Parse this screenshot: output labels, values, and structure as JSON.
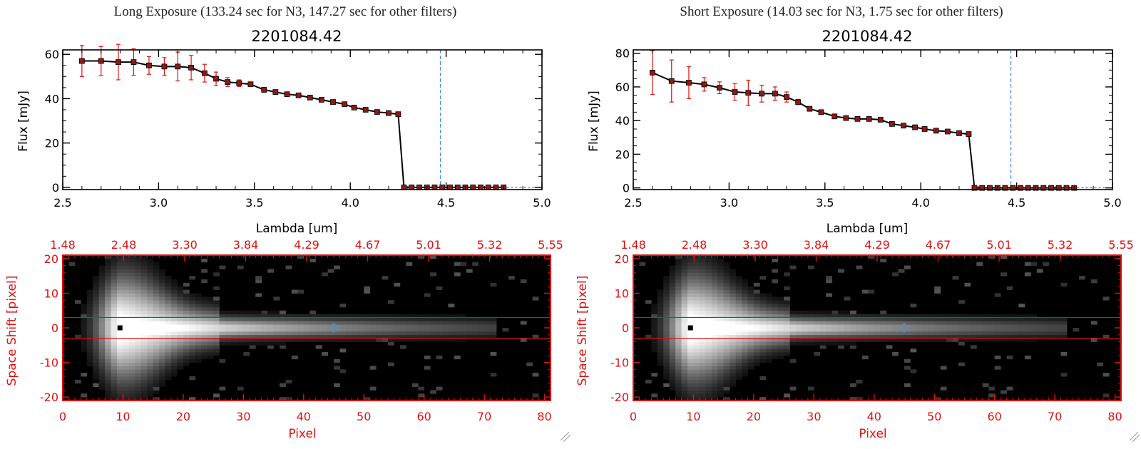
{
  "panels": [
    {
      "caption": "Long Exposure (133.24 sec for N3, 147.27 sec for other filters)",
      "title": "2201084.42"
    },
    {
      "caption": "Short Exposure (14.03 sec for N3, 1.75 sec for other filters)",
      "title": "2201084.42"
    }
  ],
  "colors": {
    "axis": "#000000",
    "red": "#dd1111",
    "marker": "#8b1a1a",
    "line": "#000000",
    "cutoff": "#4a90d9",
    "image_bg": "#000000"
  },
  "chart_data": [
    {
      "type": "scatter",
      "title": "2201084.42",
      "xlabel": "Lambda [um]",
      "ylabel": "Flux [mJy]",
      "xlim": [
        2.5,
        5.0
      ],
      "ylim": [
        -1,
        62
      ],
      "xticks": [
        "2.5",
        "3.0",
        "3.5",
        "4.0",
        "4.5",
        "5.0"
      ],
      "yticks": [
        "0",
        "20",
        "40",
        "60"
      ],
      "cutoff_x": 4.47,
      "x": [
        2.6,
        2.7,
        2.79,
        2.87,
        2.95,
        3.03,
        3.1,
        3.17,
        3.24,
        3.3,
        3.36,
        3.42,
        3.48,
        3.55,
        3.61,
        3.67,
        3.73,
        3.79,
        3.85,
        3.91,
        3.97,
        4.02,
        4.08,
        4.14,
        4.2,
        4.25,
        4.28,
        4.32,
        4.36,
        4.4,
        4.44,
        4.48,
        4.52,
        4.56,
        4.6,
        4.64,
        4.68,
        4.72,
        4.76,
        4.8
      ],
      "y": [
        57,
        57,
        56.5,
        56.5,
        55,
        54.5,
        54.5,
        54,
        51.5,
        49,
        47.5,
        47,
        46.5,
        44,
        43,
        42,
        41.5,
        40.5,
        39.5,
        38.5,
        37.5,
        36,
        35,
        34,
        33.5,
        33,
        0,
        0,
        0,
        0,
        0,
        0,
        0,
        0,
        0,
        0,
        0,
        0,
        0,
        0
      ],
      "err": [
        7,
        6.5,
        8,
        6,
        4,
        4,
        6.5,
        5.5,
        4,
        3,
        2,
        1.5,
        1,
        1,
        0,
        0,
        0,
        0,
        0,
        0,
        0,
        0,
        0,
        0,
        0,
        0,
        0,
        0,
        0,
        0,
        0,
        0,
        0,
        0,
        0,
        0,
        0,
        0,
        0,
        0
      ]
    },
    {
      "type": "scatter",
      "title": "2201084.42",
      "xlabel": "Lambda [um]",
      "ylabel": "Flux [mJy]",
      "xlim": [
        2.5,
        5.0
      ],
      "ylim": [
        -1,
        82
      ],
      "xticks": [
        "2.5",
        "3.0",
        "3.5",
        "4.0",
        "4.5",
        "5.0"
      ],
      "yticks": [
        "0",
        "20",
        "40",
        "60",
        "80"
      ],
      "cutoff_x": 4.47,
      "x": [
        2.6,
        2.7,
        2.79,
        2.87,
        2.95,
        3.03,
        3.1,
        3.17,
        3.24,
        3.3,
        3.36,
        3.42,
        3.48,
        3.55,
        3.61,
        3.67,
        3.73,
        3.79,
        3.85,
        3.91,
        3.97,
        4.02,
        4.08,
        4.14,
        4.2,
        4.25,
        4.28,
        4.32,
        4.36,
        4.4,
        4.44,
        4.48,
        4.52,
        4.56,
        4.6,
        4.64,
        4.68,
        4.72,
        4.76,
        4.8
      ],
      "y": [
        68.5,
        63.5,
        62.5,
        61.5,
        59.5,
        57,
        56.5,
        56,
        56,
        54,
        51,
        47,
        45,
        42.5,
        41.5,
        41,
        41,
        40.5,
        38,
        37,
        36,
        35,
        34,
        33.5,
        32.5,
        32,
        0,
        0,
        0,
        0,
        0,
        0,
        0,
        0,
        0,
        0,
        0,
        0,
        0,
        0
      ],
      "err": [
        13,
        12.5,
        9.5,
        4,
        3.5,
        5,
        7.5,
        5,
        4,
        3,
        1.5,
        1,
        0,
        0,
        0,
        0,
        0,
        0,
        0,
        0,
        0,
        0,
        0,
        0,
        0,
        0,
        0,
        0,
        0,
        0,
        0,
        0,
        0,
        0,
        0,
        0,
        0,
        0,
        0,
        0
      ]
    },
    {
      "type": "heatmap",
      "xlabel": "Pixel",
      "ylabel": "Space Shift [pixel]",
      "xlim": [
        0,
        81
      ],
      "ylim": [
        -21,
        21
      ],
      "xticks": [
        "0",
        "10",
        "20",
        "30",
        "40",
        "50",
        "60",
        "70",
        "80"
      ],
      "yticks": [
        "-20",
        "-10",
        "0",
        "10",
        "20"
      ],
      "top_ticks": [
        "1.48",
        "2.48",
        "3.30",
        "3.84",
        "4.29",
        "4.67",
        "5.01",
        "5.32",
        "5.55"
      ],
      "aperture": [
        -3,
        3
      ],
      "source_marker": [
        9.5,
        0
      ],
      "cutoff_marker": [
        45,
        0
      ]
    },
    {
      "type": "heatmap",
      "xlabel": "Pixel",
      "ylabel": "Space Shift [pixel]",
      "xlim": [
        0,
        81
      ],
      "ylim": [
        -21,
        21
      ],
      "xticks": [
        "0",
        "10",
        "20",
        "30",
        "40",
        "50",
        "60",
        "70",
        "80"
      ],
      "yticks": [
        "-20",
        "-10",
        "0",
        "10",
        "20"
      ],
      "top_ticks": [
        "1.48",
        "2.48",
        "3.30",
        "3.84",
        "4.29",
        "4.67",
        "5.01",
        "5.32",
        "5.55"
      ],
      "aperture": [
        -3,
        3
      ],
      "source_marker": [
        9.5,
        0
      ],
      "cutoff_marker": [
        45,
        0
      ]
    }
  ]
}
